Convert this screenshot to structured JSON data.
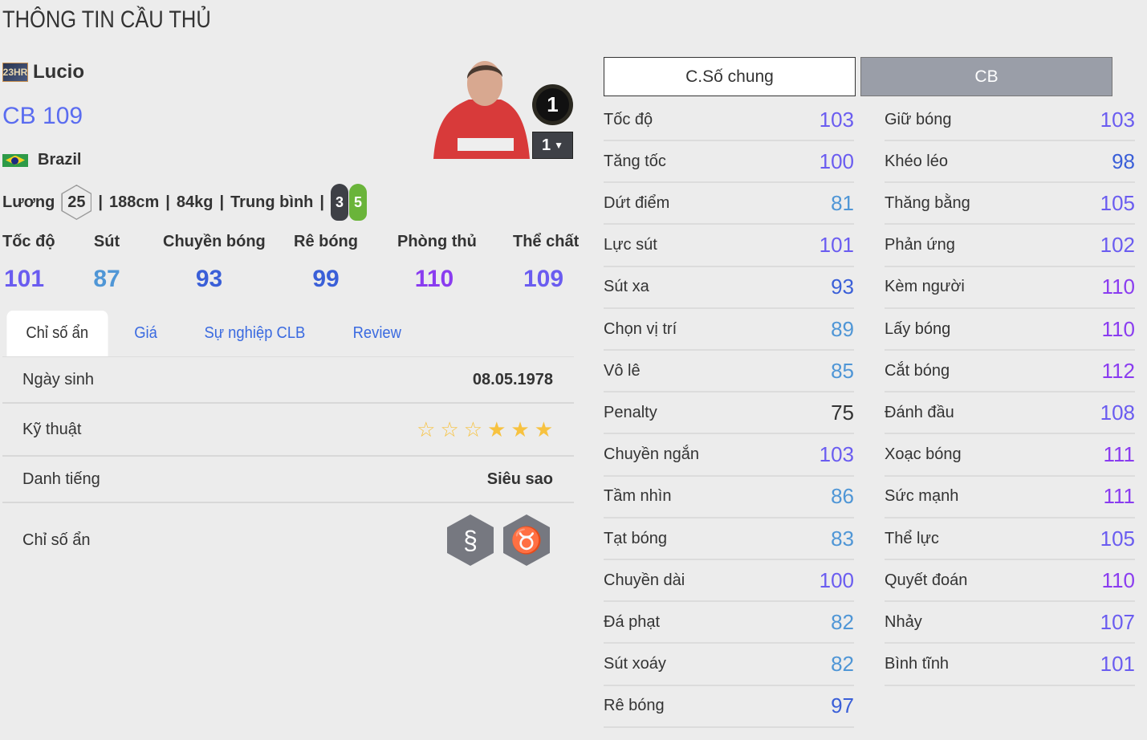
{
  "header": {
    "title": "THÔNG TIN CẦU THỦ"
  },
  "player": {
    "season_badge": "23HR",
    "name": "Lucio",
    "position": "CB",
    "ovr": "109",
    "nation": "Brazil",
    "salary_label": "Lương",
    "salary": "25",
    "height": "188cm",
    "weight": "84kg",
    "build": "Trung bình",
    "left_foot": "3",
    "right_foot": "5",
    "team_color_level": "1",
    "upgrade_level": "1"
  },
  "main_stats": [
    {
      "label": "Tốc độ",
      "value": "101"
    },
    {
      "label": "Sút",
      "value": "87"
    },
    {
      "label": "Chuyền bóng",
      "value": "93"
    },
    {
      "label": "Rê bóng",
      "value": "99"
    },
    {
      "label": "Phòng thủ",
      "value": "110"
    },
    {
      "label": "Thể chất",
      "value": "109"
    }
  ],
  "tabs": [
    {
      "label": "Chỉ số ẩn",
      "active": true
    },
    {
      "label": "Giá"
    },
    {
      "label": "Sự nghiệp CLB"
    },
    {
      "label": "Review"
    }
  ],
  "details": {
    "birth_label": "Ngày sinh",
    "birth": "08.05.1978",
    "skill_label": "Kỹ thuật",
    "skill_stars": 3,
    "skill_max": 6,
    "fame_label": "Danh tiếng",
    "fame": "Siêu sao",
    "traits_label": "Chỉ số ẩn",
    "traits": [
      "snake-icon",
      "buffalo-icon"
    ]
  },
  "stat_tabs": {
    "general": "C.Số chung",
    "position": "CB"
  },
  "colors": {
    "s110": "#8a3cf0",
    "s100": "#6a5cf0",
    "s90": "#3a5fd8",
    "s80": "#4f96d6",
    "s70": "#333333",
    "star": "#f7c240"
  },
  "stats_left": [
    {
      "label": "Tốc độ",
      "value": "103"
    },
    {
      "label": "Tăng tốc",
      "value": "100"
    },
    {
      "label": "Dứt điểm",
      "value": "81"
    },
    {
      "label": "Lực sút",
      "value": "101"
    },
    {
      "label": "Sút xa",
      "value": "93"
    },
    {
      "label": "Chọn vị trí",
      "value": "89"
    },
    {
      "label": "Vô lê",
      "value": "85"
    },
    {
      "label": "Penalty",
      "value": "75"
    },
    {
      "label": "Chuyền ngắn",
      "value": "103"
    },
    {
      "label": "Tầm nhìn",
      "value": "86"
    },
    {
      "label": "Tạt bóng",
      "value": "83"
    },
    {
      "label": "Chuyền dài",
      "value": "100"
    },
    {
      "label": "Đá phạt",
      "value": "82"
    },
    {
      "label": "Sút xoáy",
      "value": "82"
    },
    {
      "label": "Rê bóng",
      "value": "97"
    }
  ],
  "stats_right": [
    {
      "label": "Giữ bóng",
      "value": "103"
    },
    {
      "label": "Khéo léo",
      "value": "98"
    },
    {
      "label": "Thăng bằng",
      "value": "105"
    },
    {
      "label": "Phản ứng",
      "value": "102"
    },
    {
      "label": "Kèm người",
      "value": "110"
    },
    {
      "label": "Lấy bóng",
      "value": "110"
    },
    {
      "label": "Cắt bóng",
      "value": "112"
    },
    {
      "label": "Đánh đầu",
      "value": "108"
    },
    {
      "label": "Xoạc bóng",
      "value": "111"
    },
    {
      "label": "Sức mạnh",
      "value": "111"
    },
    {
      "label": "Thể lực",
      "value": "105"
    },
    {
      "label": "Quyết đoán",
      "value": "110"
    },
    {
      "label": "Nhảy",
      "value": "107"
    },
    {
      "label": "Bình tĩnh",
      "value": "101"
    }
  ]
}
